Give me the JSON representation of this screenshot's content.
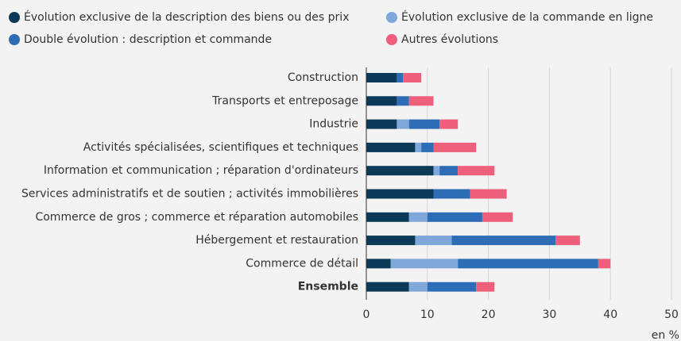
{
  "chart_data": {
    "type": "stacked-barh",
    "categories": [
      "Construction",
      "Transports et entreposage",
      "Industrie",
      "Activités spécialisées, scientifiques et techniques",
      "Information et communication ; réparation d'ordinateurs",
      "Services administratifs et de soutien ; activités immobilières",
      "Commerce de gros ; commerce et réparation automobiles",
      "Hébergement et restauration",
      "Commerce de détail",
      "Ensemble"
    ],
    "series": [
      {
        "name": "Évolution exclusive de la description des biens ou des prix",
        "color": "#0a3a57",
        "values": [
          5,
          5,
          5,
          8,
          11,
          11,
          7,
          8,
          4,
          7
        ]
      },
      {
        "name": "Évolution exclusive de la commande en ligne",
        "color": "#7fa7d9",
        "values": [
          0,
          0,
          2,
          1,
          1,
          0,
          3,
          6,
          11,
          3
        ]
      },
      {
        "name": "Double évolution : description et commande",
        "color": "#2d6db5",
        "values": [
          1,
          2,
          5,
          2,
          3,
          6,
          9,
          17,
          23,
          8
        ]
      },
      {
        "name": "Autres évolutions",
        "color": "#ee5f7b",
        "values": [
          3,
          4,
          3,
          7,
          6,
          6,
          5,
          4,
          2,
          3
        ]
      }
    ],
    "xlim": [
      0,
      50
    ],
    "xticks": [
      0,
      10,
      20,
      30,
      40,
      50
    ],
    "xlabel": "en %",
    "grid": true
  }
}
